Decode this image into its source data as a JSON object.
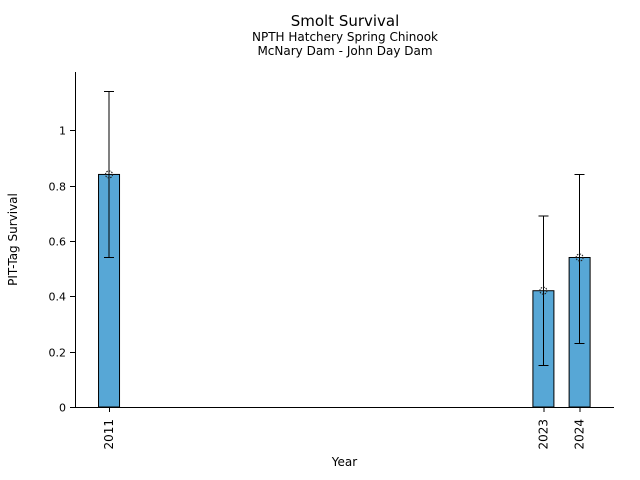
{
  "title": "Smolt Survival",
  "subtitle_line1": "NPTH Hatchery Spring Chinook",
  "subtitle_line2": "McNary Dam - John Day Dam",
  "chart_data": {
    "type": "bar",
    "title": "Smolt Survival",
    "subtitle": [
      "NPTH Hatchery Spring Chinook",
      "McNary Dam - John Day Dam"
    ],
    "xlabel": "Year",
    "ylabel": "PIT-Tag Survival",
    "categories": [
      2011,
      2023,
      2024
    ],
    "category_labels": [
      "2011",
      "2023",
      "2024"
    ],
    "values": [
      0.84,
      0.42,
      0.54
    ],
    "error_bars": [
      {
        "low": 0.54,
        "high": 1.14
      },
      {
        "low": 0.15,
        "high": 0.69
      },
      {
        "low": 0.23,
        "high": 0.84
      }
    ],
    "marker": "open-circle",
    "x_scale": "linear",
    "xlim": [
      2010.06,
      2024.95
    ],
    "ylim": [
      0,
      1.21
    ],
    "yticks": [
      0,
      0.2,
      0.4,
      0.6,
      0.8,
      1
    ],
    "ytick_labels": [
      "0",
      "0.2",
      "0.4",
      "0.6",
      "0.8",
      "1"
    ],
    "xtick_rotation_deg": 90,
    "grid": false,
    "legend": false,
    "bar_color": "#57A7D6",
    "bar_edge_color": "#000000",
    "axis_color": "#000000",
    "background_color": "#ffffff"
  }
}
